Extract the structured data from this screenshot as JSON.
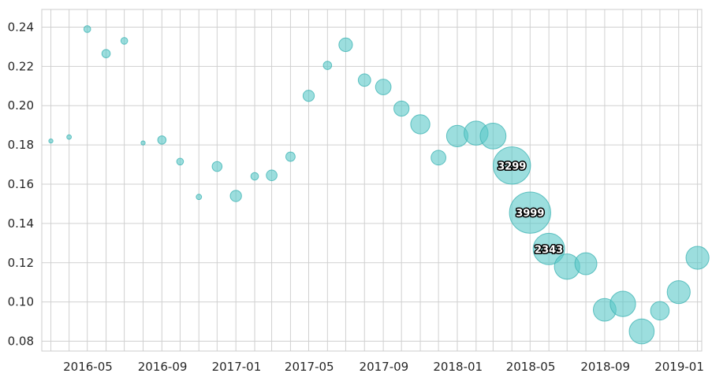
{
  "chart_data": {
    "type": "scatter",
    "title": "",
    "xlabel": "",
    "ylabel": "",
    "x_type": "date",
    "xlim": [
      "2016-02-15",
      "2019-02-07"
    ],
    "ylim": [
      0.075,
      0.249
    ],
    "x_ticks": [
      "2016-05-01",
      "2016-09-01",
      "2017-01-01",
      "2017-05-01",
      "2017-09-01",
      "2018-01-01",
      "2018-05-01",
      "2018-09-01",
      "2019-01-01"
    ],
    "x_tick_labels": [
      "2016-05",
      "2016-09",
      "2017-01",
      "2017-05",
      "2017-09",
      "2018-01",
      "2018-05",
      "2018-09",
      "2019-01"
    ],
    "y_ticks": [
      0.08,
      0.1,
      0.12,
      0.14,
      0.16,
      0.18,
      0.2,
      0.22,
      0.24
    ],
    "y_tick_labels": [
      "0.08",
      "0.10",
      "0.12",
      "0.14",
      "0.16",
      "0.18",
      "0.20",
      "0.22",
      "0.24"
    ],
    "grid": true,
    "bubble_color": "#5ac8c8",
    "points": [
      {
        "x": "2016-03-01",
        "y": 0.182,
        "size": 15
      },
      {
        "x": "2016-03-31",
        "y": 0.184,
        "size": 18
      },
      {
        "x": "2016-04-30",
        "y": 0.239,
        "size": 40
      },
      {
        "x": "2016-05-31",
        "y": 0.2265,
        "size": 60
      },
      {
        "x": "2016-06-30",
        "y": 0.233,
        "size": 40
      },
      {
        "x": "2016-07-31",
        "y": 0.181,
        "size": 15
      },
      {
        "x": "2016-08-31",
        "y": 0.1825,
        "size": 60
      },
      {
        "x": "2016-09-30",
        "y": 0.1715,
        "size": 40
      },
      {
        "x": "2016-10-31",
        "y": 0.1535,
        "size": 25
      },
      {
        "x": "2016-11-30",
        "y": 0.169,
        "size": 85
      },
      {
        "x": "2016-12-31",
        "y": 0.154,
        "size": 110
      },
      {
        "x": "2017-01-31",
        "y": 0.164,
        "size": 50
      },
      {
        "x": "2017-02-28",
        "y": 0.1645,
        "size": 100
      },
      {
        "x": "2017-03-31",
        "y": 0.174,
        "size": 75
      },
      {
        "x": "2017-04-30",
        "y": 0.205,
        "size": 110
      },
      {
        "x": "2017-05-31",
        "y": 0.2205,
        "size": 60
      },
      {
        "x": "2017-06-30",
        "y": 0.231,
        "size": 160
      },
      {
        "x": "2017-07-31",
        "y": 0.213,
        "size": 135
      },
      {
        "x": "2017-08-31",
        "y": 0.2095,
        "size": 210
      },
      {
        "x": "2017-09-30",
        "y": 0.1985,
        "size": 200
      },
      {
        "x": "2017-10-31",
        "y": 0.1905,
        "size": 320
      },
      {
        "x": "2017-11-30",
        "y": 0.1735,
        "size": 190
      },
      {
        "x": "2017-12-31",
        "y": 0.1845,
        "size": 400
      },
      {
        "x": "2018-01-31",
        "y": 0.186,
        "size": 500
      },
      {
        "x": "2018-02-28",
        "y": 0.1845,
        "size": 580
      },
      {
        "x": "2018-03-31",
        "y": 0.1695,
        "size": 1210,
        "label": "3299"
      },
      {
        "x": "2018-04-30",
        "y": 0.1455,
        "size": 1480,
        "label": "3999"
      },
      {
        "x": "2018-05-31",
        "y": 0.127,
        "size": 860,
        "label": "2343"
      },
      {
        "x": "2018-06-30",
        "y": 0.118,
        "size": 560
      },
      {
        "x": "2018-07-31",
        "y": 0.1195,
        "size": 420
      },
      {
        "x": "2018-08-31",
        "y": 0.096,
        "size": 450
      },
      {
        "x": "2018-09-30",
        "y": 0.099,
        "size": 560
      },
      {
        "x": "2018-10-31",
        "y": 0.085,
        "size": 540
      },
      {
        "x": "2018-11-30",
        "y": 0.0955,
        "size": 300
      },
      {
        "x": "2018-12-31",
        "y": 0.105,
        "size": 460
      },
      {
        "x": "2019-01-31",
        "y": 0.1225,
        "size": 460
      }
    ]
  }
}
